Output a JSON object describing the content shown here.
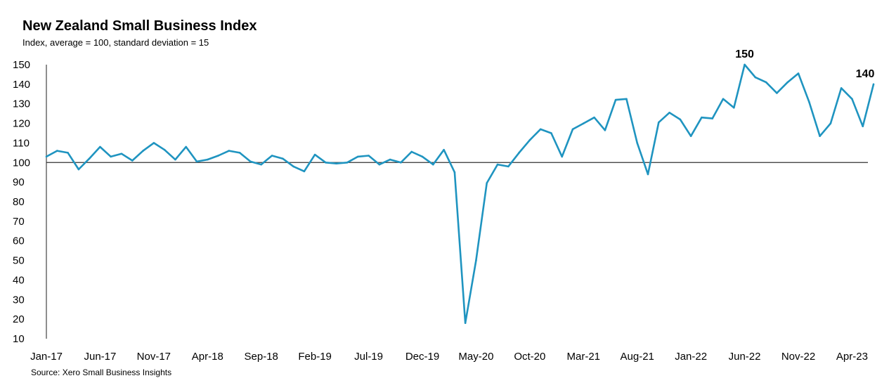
{
  "chart_data": {
    "type": "line",
    "title": "New Zealand Small Business Index",
    "subtitle": "Index, average = 100, standard deviation = 15",
    "source": "Source: Xero Small Business Insights",
    "xlabel": "",
    "ylabel": "",
    "ylim": [
      10,
      150
    ],
    "yticks": [
      10,
      20,
      30,
      40,
      50,
      60,
      70,
      80,
      90,
      100,
      110,
      120,
      130,
      140,
      150
    ],
    "xtick_labels": [
      "Jan-17",
      "Jun-17",
      "Nov-17",
      "Apr-18",
      "Sep-18",
      "Feb-19",
      "Jul-19",
      "Dec-19",
      "May-20",
      "Oct-20",
      "Mar-21",
      "Aug-21",
      "Jan-22",
      "Jun-22",
      "Nov-22",
      "Apr-23"
    ],
    "reference_line": 100,
    "grid": false,
    "line_color": "#1f94c0",
    "x": [
      "Jan-17",
      "Feb-17",
      "Mar-17",
      "Apr-17",
      "May-17",
      "Jun-17",
      "Jul-17",
      "Aug-17",
      "Sep-17",
      "Oct-17",
      "Nov-17",
      "Dec-17",
      "Jan-18",
      "Feb-18",
      "Mar-18",
      "Apr-18",
      "May-18",
      "Jun-18",
      "Jul-18",
      "Aug-18",
      "Sep-18",
      "Oct-18",
      "Nov-18",
      "Dec-18",
      "Jan-19",
      "Feb-19",
      "Mar-19",
      "Apr-19",
      "May-19",
      "Jun-19",
      "Jul-19",
      "Aug-19",
      "Sep-19",
      "Oct-19",
      "Nov-19",
      "Dec-19",
      "Jan-20",
      "Feb-20",
      "Mar-20",
      "Apr-20",
      "May-20",
      "Jun-20",
      "Jul-20",
      "Aug-20",
      "Sep-20",
      "Oct-20",
      "Nov-20",
      "Dec-20",
      "Jan-21",
      "Feb-21",
      "Mar-21",
      "Apr-21",
      "May-21",
      "Jun-21",
      "Jul-21",
      "Aug-21",
      "Sep-21",
      "Oct-21",
      "Nov-21",
      "Dec-21",
      "Jan-22",
      "Feb-22",
      "Mar-22",
      "Apr-22",
      "May-22",
      "Jun-22",
      "Jul-22",
      "Aug-22",
      "Sep-22",
      "Oct-22",
      "Nov-22",
      "Dec-22",
      "Jan-23",
      "Feb-23",
      "Mar-23",
      "Apr-23",
      "May-23",
      "Jun-23"
    ],
    "values": [
      103,
      106,
      105,
      96.5,
      102,
      108,
      103,
      104.5,
      101,
      106,
      110,
      106.5,
      101.5,
      108,
      100.5,
      101.5,
      103.5,
      106,
      105,
      100.5,
      99,
      103.5,
      102,
      98,
      95.5,
      104,
      100,
      99.5,
      100,
      103,
      103.5,
      99,
      101.5,
      100,
      105.5,
      103,
      99,
      106.5,
      95,
      18,
      50,
      89.5,
      99,
      98,
      105,
      111.5,
      117,
      115,
      103,
      117,
      120,
      123,
      116.5,
      132,
      132.5,
      110,
      94,
      120.5,
      125.5,
      122,
      113.5,
      123,
      122.5,
      132.5,
      128,
      150,
      143.5,
      141,
      135.5,
      141,
      145.5,
      131,
      113.5,
      120,
      138,
      132.5,
      118.5,
      140
    ],
    "data_labels": [
      {
        "x": "Jun-22",
        "text": "150"
      },
      {
        "x": "Jun-23",
        "text": "140"
      }
    ]
  }
}
